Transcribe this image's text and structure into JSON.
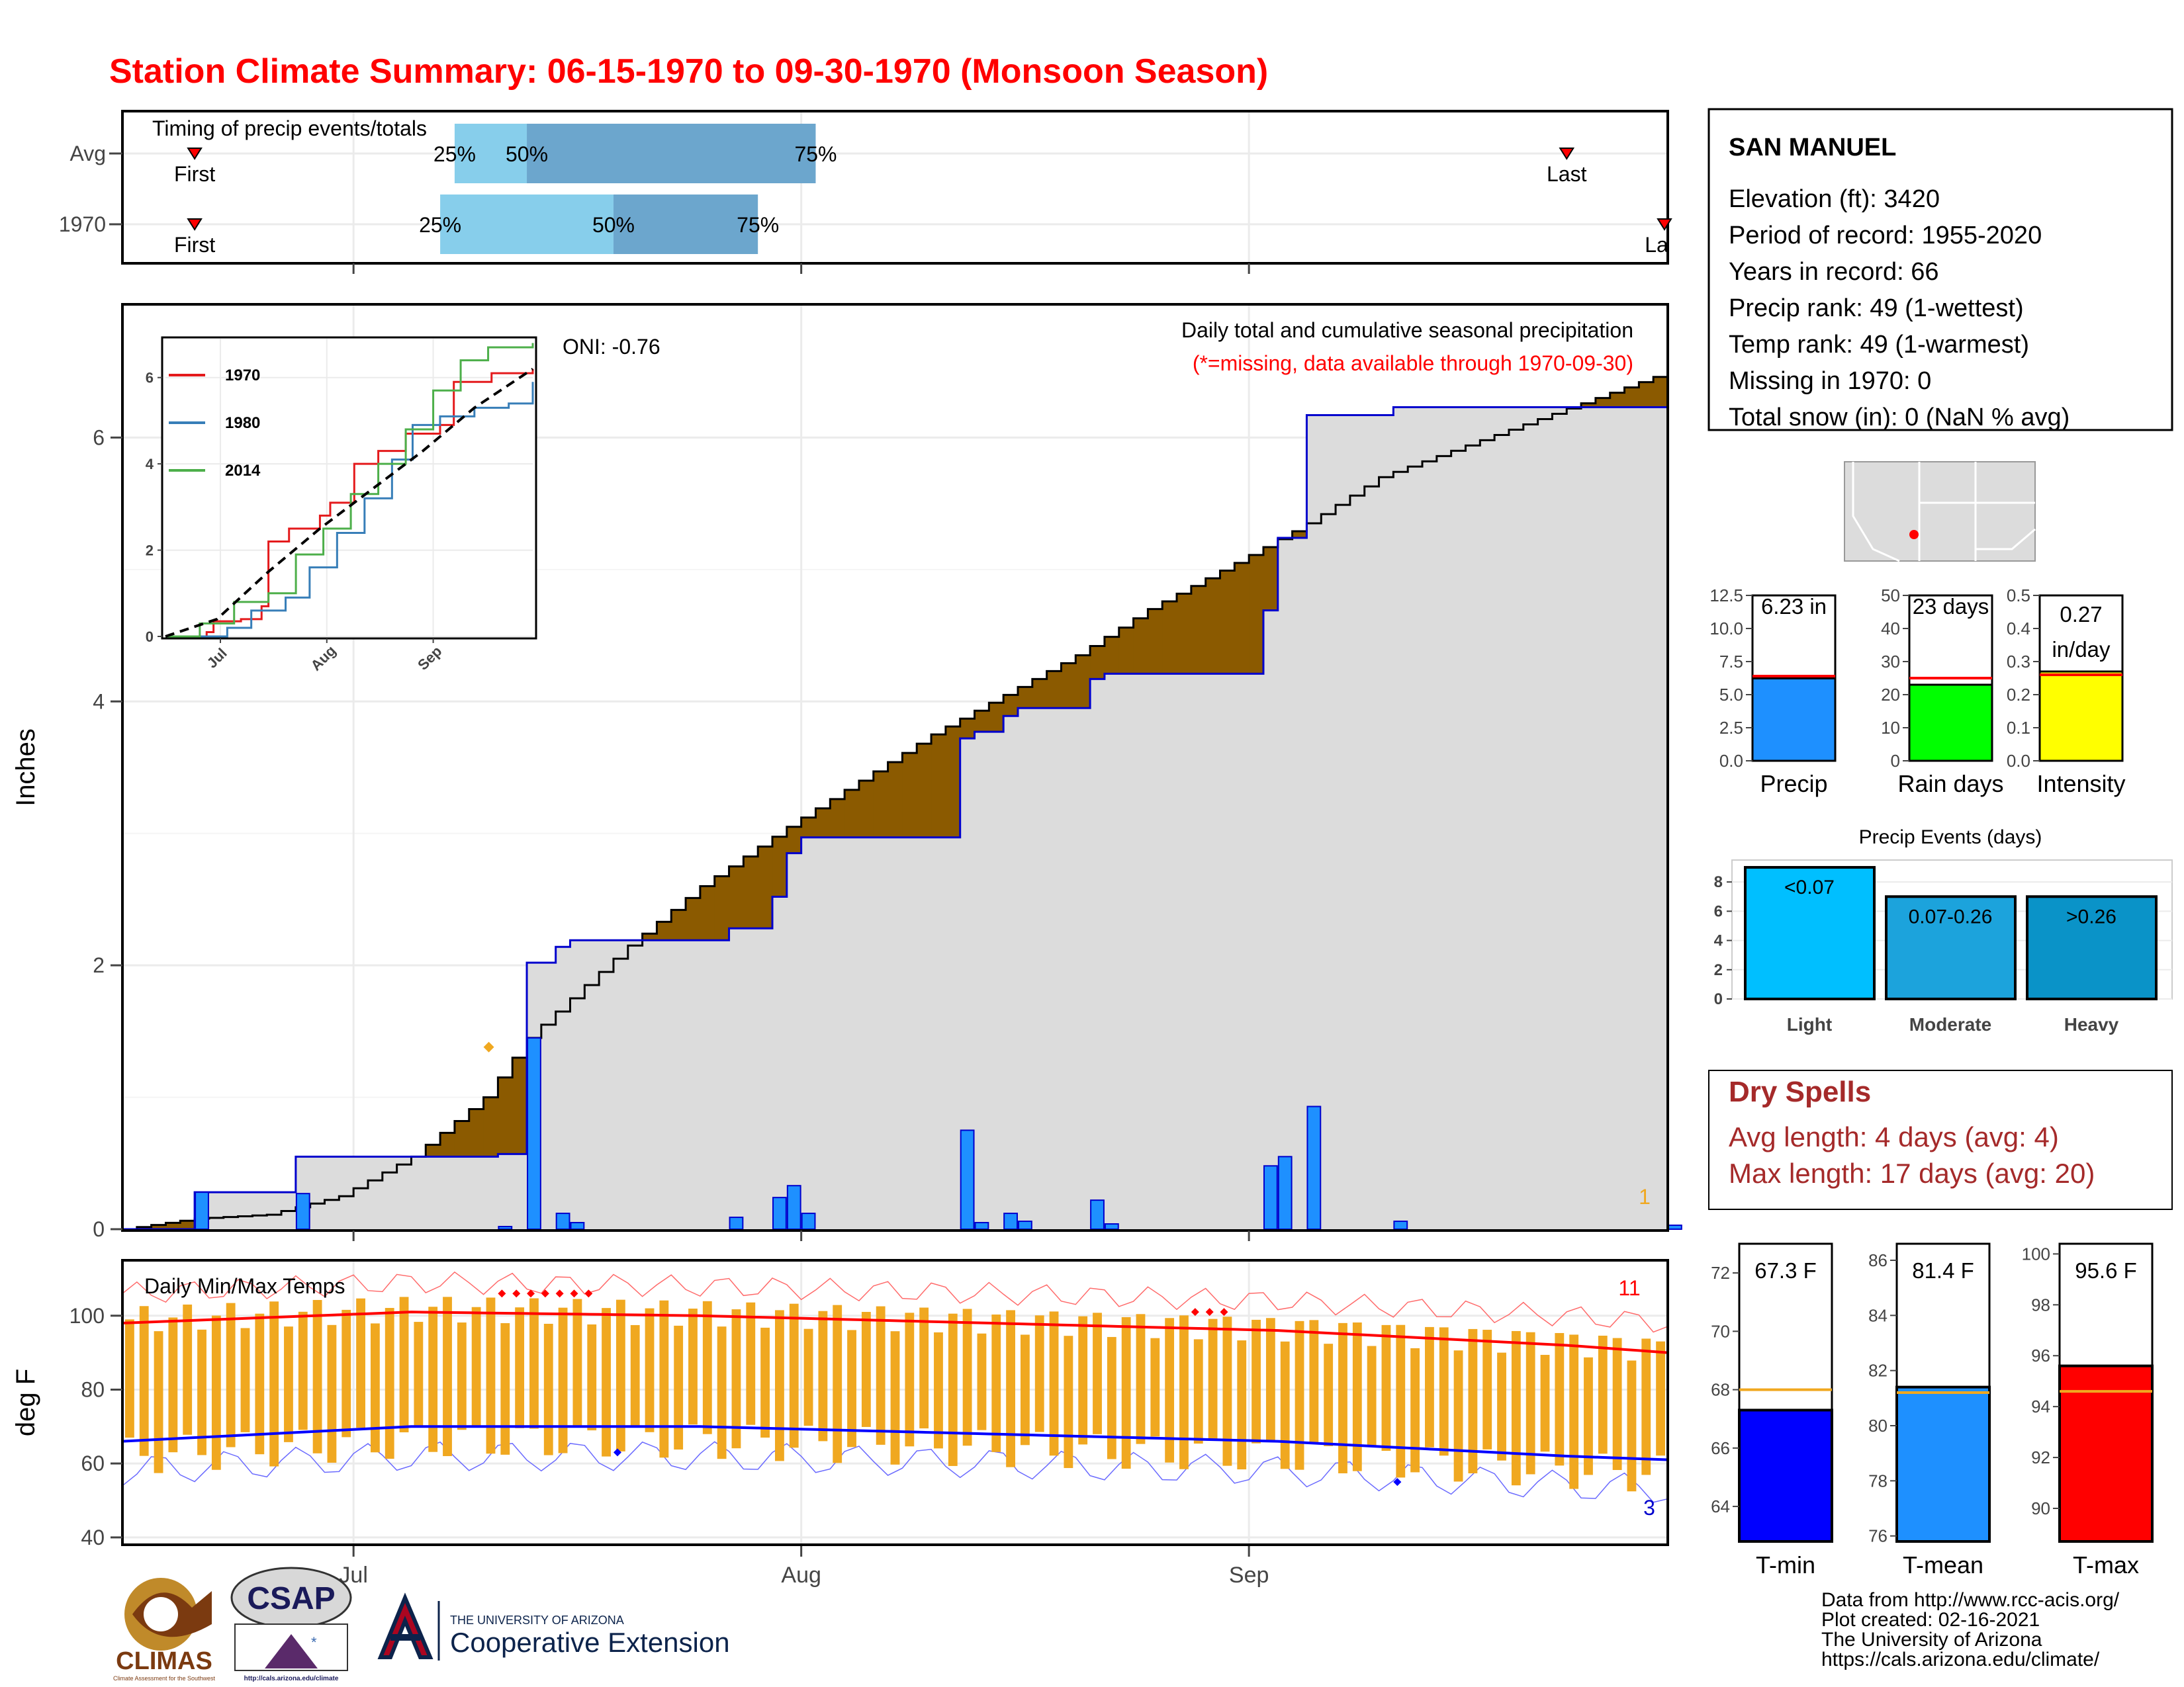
{
  "title": "Station Climate Summary: 06-15-1970 to 09-30-1970 (Monsoon Season)",
  "colors": {
    "title": "#ff0000",
    "above_avg_fill": "#8b5a00",
    "below_avg_fill": "#007f00",
    "current_line": "#0000cd",
    "daily_bar": "#1e90ff",
    "record_fill": "#dcdcdc",
    "tmax_line": "#ff0000",
    "tmin_line": "#0000ff",
    "temp_range_bar": "#f0a820",
    "quartile_light": "#87ceeb",
    "quartile_dark": "#6ca6cd",
    "dry_spell_text": "#a52a2a"
  },
  "timing": {
    "label": "Timing of precip events/totals",
    "rows": [
      {
        "label": "Avg",
        "first": "Jun 20",
        "q25": "Jul 8",
        "q50": "Jul 13",
        "q75": "Aug 2",
        "last": "Sep 23",
        "labels": {
          "first": "First",
          "q25": "25%",
          "q50": "50%",
          "q75": "75%",
          "last": "Last"
        }
      },
      {
        "label": "1970",
        "first": "Jun 20",
        "q25": "Jul 7",
        "q50": "Jul 19",
        "q75": "Jul 29",
        "last": "Sep 30",
        "labels": {
          "first": "First",
          "q25": "25%",
          "q50": "50%",
          "q75": "75%",
          "last": "La"
        }
      }
    ]
  },
  "precip_panel": {
    "ylabel": "Inches",
    "yticks": [
      "0",
      "2",
      "4",
      "6"
    ],
    "oni": "ONI: -0.76",
    "title": "Daily total and cumulative seasonal precipitation",
    "subtitle": "(*=missing, data available through 1970-09-30)",
    "corner_count": "1"
  },
  "inset": {
    "yticks": [
      "0",
      "2",
      "4",
      "6"
    ],
    "xticks": [
      "Jul",
      "Aug",
      "Sep"
    ],
    "legend": [
      {
        "name": "1970",
        "color": "#e41a1c"
      },
      {
        "name": "1980",
        "color": "#377eb8"
      },
      {
        "name": "2014",
        "color": "#4daf4a"
      }
    ]
  },
  "temp_panel": {
    "label": "Daily Min/Max Temps",
    "ylabel": "deg F",
    "yticks": [
      "40",
      "60",
      "80",
      "100"
    ],
    "xticks": [
      "Jul",
      "Aug",
      "Sep"
    ],
    "record_high_count": "11",
    "record_low_count": "3"
  },
  "station": {
    "name": "SAN MANUEL",
    "lines": [
      "Elevation (ft): 3420",
      "Period of record: 1955-2020",
      "Years in record: 66",
      "Precip rank: 49 (1-wettest)",
      "Temp rank: 49 (1-warmest)",
      "Missing in 1970: 0",
      "Total snow (in): 0 (NaN % avg)"
    ]
  },
  "summary_bars": [
    {
      "label": "Precip",
      "value_text": "6.23 in",
      "yticks": [
        "0.0",
        "2.5",
        "5.0",
        "7.5",
        "10.0",
        "12.5"
      ]
    },
    {
      "label": "Rain days",
      "value_text": "23 days",
      "yticks": [
        "0",
        "10",
        "20",
        "30",
        "40",
        "50"
      ]
    },
    {
      "label": "Intensity",
      "value_text": "0.27",
      "value_text2": "in/day",
      "yticks": [
        "0.0",
        "0.1",
        "0.2",
        "0.3",
        "0.4",
        "0.5"
      ]
    }
  ],
  "precip_events": {
    "title": "Precip Events (days)",
    "yticks": [
      "0",
      "2",
      "4",
      "6",
      "8"
    ],
    "bars": [
      {
        "label": "Light",
        "text": "<0.07"
      },
      {
        "label": "Moderate",
        "text": "0.07-0.26"
      },
      {
        "label": "Heavy",
        "text": ">0.26"
      }
    ]
  },
  "dry_spells": {
    "title": "Dry Spells",
    "avg": "Avg length: 4 days (avg: 4)",
    "max": "Max length: 17 days (avg: 20)"
  },
  "temp_bars": [
    {
      "label": "T-min",
      "value_text": "67.3 F",
      "yticks": [
        "64",
        "66",
        "68",
        "70",
        "72"
      ]
    },
    {
      "label": "T-mean",
      "value_text": "81.4 F",
      "yticks": [
        "76",
        "78",
        "80",
        "82",
        "84",
        "86"
      ]
    },
    {
      "label": "T-max",
      "value_text": "95.6 F",
      "yticks": [
        "90",
        "92",
        "94",
        "96",
        "98",
        "100"
      ]
    }
  ],
  "footer": {
    "lines": [
      "Data from http://www.rcc-acis.org/",
      "Plot created: 02-16-2021",
      "The University of Arizona",
      "https://cals.arizona.edu/climate/"
    ],
    "logos": {
      "climas": "CLIMAS",
      "climas_sub": "Climate Assessment for the Southwest",
      "csap": "CSAP",
      "csap_url": "http://cals.arizona.edu/climate",
      "ua_line1": "THE UNIVERSITY OF ARIZONA",
      "ua_line2": "Cooperative Extension"
    }
  },
  "chart_data": [
    {
      "type": "area",
      "name": "cumulative_precip",
      "x_start": "1970-06-15",
      "xlim": [
        "1970-06-15",
        "1970-09-30"
      ],
      "ylim": [
        0,
        7
      ],
      "xticks": [
        "Jul",
        "Aug",
        "Sep"
      ],
      "daily_1970": [
        {
          "date": "1970-06-20",
          "value": 0.28
        },
        {
          "date": "1970-06-27",
          "value": 0.27
        },
        {
          "date": "1970-07-11",
          "value": 0.02
        },
        {
          "date": "1970-07-13",
          "value": 1.45
        },
        {
          "date": "1970-07-15",
          "value": 0.12
        },
        {
          "date": "1970-07-16",
          "value": 0.05
        },
        {
          "date": "1970-07-27",
          "value": 0.09
        },
        {
          "date": "1970-07-30",
          "value": 0.24
        },
        {
          "date": "1970-07-31",
          "value": 0.33
        },
        {
          "date": "1970-08-01",
          "value": 0.12
        },
        {
          "date": "1970-08-12",
          "value": 0.75
        },
        {
          "date": "1970-08-13",
          "value": 0.05
        },
        {
          "date": "1970-08-15",
          "value": 0.12
        },
        {
          "date": "1970-08-16",
          "value": 0.06
        },
        {
          "date": "1970-08-21",
          "value": 0.22
        },
        {
          "date": "1970-08-22",
          "value": 0.04
        },
        {
          "date": "1970-09-02",
          "value": 0.48
        },
        {
          "date": "1970-09-03",
          "value": 0.55
        },
        {
          "date": "1970-09-05",
          "value": 0.93
        },
        {
          "date": "1970-09-11",
          "value": 0.06
        },
        {
          "date": "1970-09-30",
          "value": 0.03
        }
      ],
      "avg_cumulative": [
        {
          "date": "1970-06-15",
          "value": 0.0
        },
        {
          "date": "1970-06-20",
          "value": 0.08
        },
        {
          "date": "1970-06-25",
          "value": 0.11
        },
        {
          "date": "1970-06-30",
          "value": 0.25
        },
        {
          "date": "1970-07-05",
          "value": 0.55
        },
        {
          "date": "1970-07-10",
          "value": 1.0
        },
        {
          "date": "1970-07-13",
          "value": 1.45
        },
        {
          "date": "1970-07-15",
          "value": 1.65
        },
        {
          "date": "1970-07-20",
          "value": 2.15
        },
        {
          "date": "1970-07-25",
          "value": 2.6
        },
        {
          "date": "1970-07-31",
          "value": 3.05
        },
        {
          "date": "1970-08-05",
          "value": 3.4
        },
        {
          "date": "1970-08-10",
          "value": 3.75
        },
        {
          "date": "1970-08-15",
          "value": 4.05
        },
        {
          "date": "1970-08-20",
          "value": 4.35
        },
        {
          "date": "1970-08-25",
          "value": 4.7
        },
        {
          "date": "1970-08-31",
          "value": 5.05
        },
        {
          "date": "1970-09-05",
          "value": 5.35
        },
        {
          "date": "1970-09-10",
          "value": 5.7
        },
        {
          "date": "1970-09-15",
          "value": 5.9
        },
        {
          "date": "1970-09-20",
          "value": 6.1
        },
        {
          "date": "1970-09-25",
          "value": 6.3
        },
        {
          "date": "1970-09-30",
          "value": 6.5
        }
      ]
    },
    {
      "type": "line",
      "name": "inset_cumulative_comparison",
      "ylim": [
        0,
        6.9
      ],
      "series": [
        {
          "name": "1970",
          "values": [
            [
              0,
              0
            ],
            [
              12,
              0.1
            ],
            [
              14,
              0.35
            ],
            [
              22,
              0.4
            ],
            [
              28,
              0.7
            ],
            [
              30,
              2.2
            ],
            [
              36,
              2.5
            ],
            [
              45,
              2.8
            ],
            [
              48,
              3.1
            ],
            [
              55,
              4.0
            ],
            [
              62,
              4.3
            ],
            [
              70,
              4.7
            ],
            [
              80,
              4.9
            ],
            [
              84,
              5.9
            ],
            [
              95,
              6.1
            ],
            [
              107,
              6.2
            ]
          ]
        },
        {
          "name": "1980",
          "values": [
            [
              0,
              0
            ],
            [
              18,
              0.2
            ],
            [
              25,
              0.6
            ],
            [
              35,
              0.9
            ],
            [
              42,
              1.6
            ],
            [
              50,
              2.4
            ],
            [
              58,
              3.2
            ],
            [
              66,
              4.1
            ],
            [
              72,
              4.9
            ],
            [
              80,
              5.1
            ],
            [
              90,
              5.3
            ],
            [
              100,
              5.4
            ],
            [
              107,
              5.9
            ]
          ]
        },
        {
          "name": "2014",
          "values": [
            [
              0,
              0
            ],
            [
              10,
              0.3
            ],
            [
              20,
              0.8
            ],
            [
              30,
              1.0
            ],
            [
              38,
              1.9
            ],
            [
              46,
              2.5
            ],
            [
              54,
              3.3
            ],
            [
              62,
              4.0
            ],
            [
              70,
              4.8
            ],
            [
              78,
              5.7
            ],
            [
              86,
              6.4
            ],
            [
              94,
              6.7
            ],
            [
              107,
              6.8
            ]
          ]
        },
        {
          "name": "avg",
          "values": [
            [
              0,
              0
            ],
            [
              15,
              0.4
            ],
            [
              30,
              1.5
            ],
            [
              45,
              2.5
            ],
            [
              60,
              3.4
            ],
            [
              75,
              4.3
            ],
            [
              90,
              5.3
            ],
            [
              107,
              6.2
            ]
          ]
        }
      ]
    },
    {
      "type": "line",
      "name": "daily_temps",
      "ylim": [
        38,
        115
      ],
      "avg_max": [
        [
          0,
          98
        ],
        [
          20,
          101
        ],
        [
          40,
          100
        ],
        [
          60,
          98
        ],
        [
          80,
          96
        ],
        [
          100,
          92
        ],
        [
          107,
          90
        ]
      ],
      "avg_min": [
        [
          0,
          66
        ],
        [
          20,
          70
        ],
        [
          40,
          70
        ],
        [
          60,
          68
        ],
        [
          80,
          66
        ],
        [
          100,
          62
        ],
        [
          107,
          61
        ]
      ]
    },
    {
      "type": "bar",
      "name": "season_summary",
      "categories": [
        "Precip",
        "Rain days",
        "Intensity"
      ],
      "values": [
        6.23,
        23,
        0.27
      ],
      "averages": [
        6.4,
        25,
        0.26
      ],
      "ylims": [
        [
          0,
          12.5
        ],
        [
          0,
          50
        ],
        [
          0,
          0.5
        ]
      ]
    },
    {
      "type": "bar",
      "name": "precip_events",
      "categories": [
        "Light",
        "Moderate",
        "Heavy"
      ],
      "values": [
        9,
        7,
        7
      ],
      "ylim": [
        0,
        9.5
      ]
    },
    {
      "type": "bar",
      "name": "temp_summary",
      "categories": [
        "T-min",
        "T-mean",
        "T-max"
      ],
      "values": [
        67.3,
        81.4,
        95.6
      ],
      "averages": [
        68.0,
        81.2,
        94.6
      ],
      "ylims": [
        [
          62.8,
          73
        ],
        [
          75.8,
          86.6
        ],
        [
          88.7,
          100.4
        ]
      ]
    }
  ]
}
